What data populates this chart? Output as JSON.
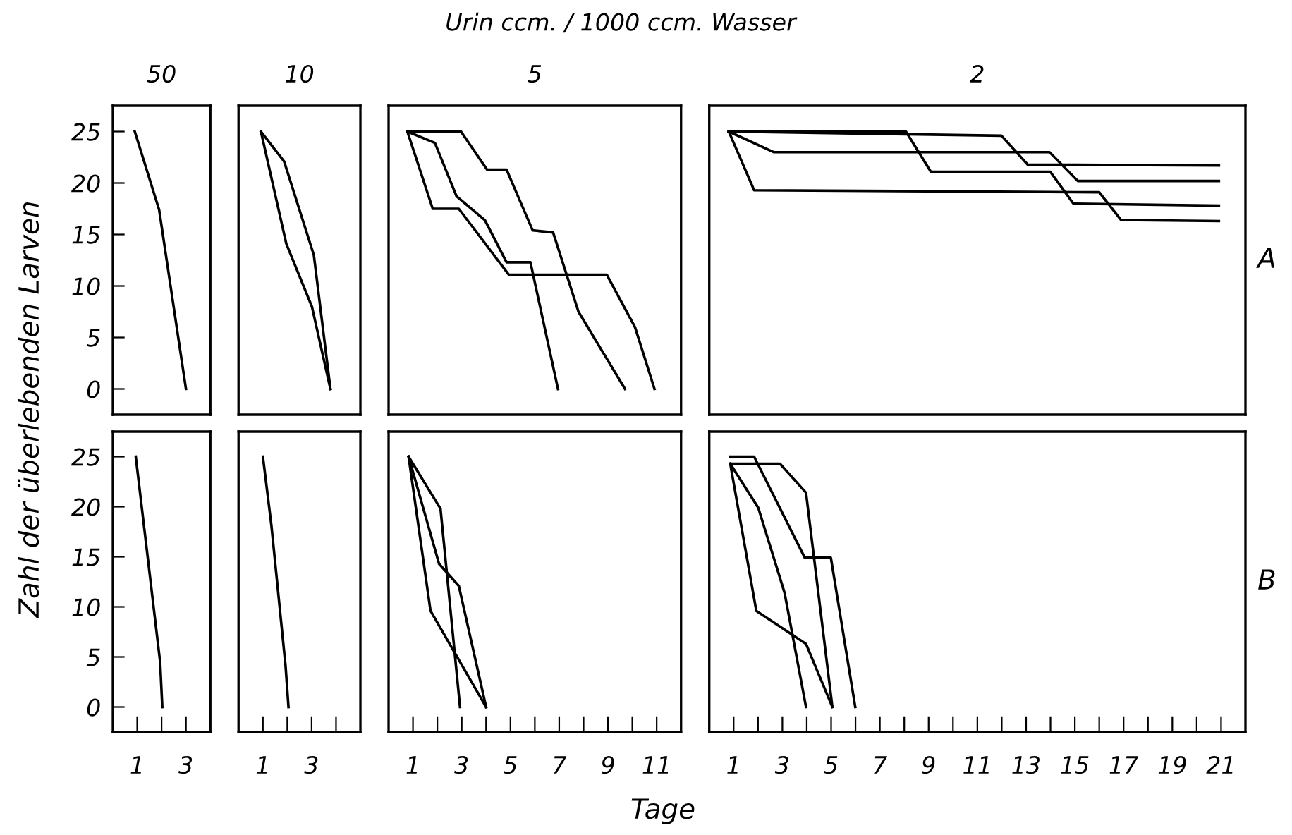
{
  "chart_data": [
    {
      "type": "line",
      "subtitle": "50",
      "xlim": [
        0,
        4
      ],
      "ylim": [
        -2.5,
        27.5
      ],
      "yticks": [
        0,
        5,
        10,
        15,
        20,
        25
      ],
      "tick_labels": "y",
      "marker": "none",
      "line_style": "solid",
      "series": [
        {
          "color": "#000000",
          "x": [
            0.9,
            1.9,
            3.0
          ],
          "values": [
            25,
            17.4,
            0
          ]
        }
      ]
    },
    {
      "type": "line",
      "subtitle": "10",
      "xlim": [
        0,
        5
      ],
      "ylim": [
        -2.5,
        27.5
      ],
      "tick_labels": false,
      "marker": "none",
      "line_style": "solid",
      "series": [
        {
          "color": "#000000",
          "x": [
            0.92,
            1.87,
            3.09,
            3.77
          ],
          "values": [
            25,
            22.1,
            13.0,
            0
          ]
        },
        {
          "color": "#000000",
          "x": [
            0.92,
            1.96,
            3.01,
            3.77
          ],
          "values": [
            25,
            14.1,
            8.0,
            0
          ]
        }
      ]
    },
    {
      "type": "line",
      "title": "Urin ccm. / 1000 ccm. Wasser",
      "subtitle": "5",
      "xlim": [
        0,
        12
      ],
      "ylim": [
        -2.5,
        27.5
      ],
      "tick_labels": false,
      "marker": "none",
      "line_style": "solid",
      "series": [
        {
          "color": "#000000",
          "x": [
            0.77,
            2.97,
            4.04,
            4.84,
            5.91,
            6.75,
            7.79,
            9.7
          ],
          "values": [
            25,
            25,
            21.3,
            21.3,
            15.4,
            15.2,
            7.5,
            0
          ]
        },
        {
          "color": "#000000",
          "x": [
            0.77,
            1.9,
            2.79,
            3.95,
            4.84,
            5.82,
            6.95
          ],
          "values": [
            25,
            23.9,
            18.7,
            16.4,
            12.3,
            12.3,
            0
          ]
        },
        {
          "color": "#000000",
          "x": [
            0.77,
            1.81,
            2.88,
            4.93,
            8.95,
            10.11,
            10.91
          ],
          "values": [
            25,
            17.5,
            17.5,
            11.1,
            11.1,
            6.0,
            0
          ]
        }
      ]
    },
    {
      "type": "line",
      "subtitle": "2",
      "xlim": [
        0,
        22
      ],
      "ylim": [
        -2.5,
        27.5
      ],
      "tick_labels": false,
      "marker": "none",
      "line_style": "solid",
      "annotations": [
        "A"
      ],
      "series": [
        {
          "color": "#000000",
          "x": [
            0.8,
            8.07,
            9.09,
            13.99,
            14.94,
            20.91
          ],
          "values": [
            25,
            25,
            21.1,
            21.1,
            18.0,
            17.8
          ]
        },
        {
          "color": "#000000",
          "x": [
            0.8,
            11.99,
            13.06,
            20.91
          ],
          "values": [
            25,
            24.6,
            21.8,
            21.7
          ]
        },
        {
          "color": "#000000",
          "x": [
            0.8,
            2.64,
            13.96,
            15.12,
            20.91
          ],
          "values": [
            25,
            23.0,
            23.0,
            20.2,
            20.2
          ]
        },
        {
          "color": "#000000",
          "x": [
            0.8,
            1.84,
            16.0,
            16.9,
            20.91
          ],
          "values": [
            25,
            19.3,
            19.1,
            16.4,
            16.3
          ]
        }
      ]
    },
    {
      "type": "line",
      "ylabel": "Zahl der überlebenden Larven",
      "xlim": [
        0,
        4
      ],
      "xticks": [
        1,
        {
          "value": 2,
          "label": null
        },
        3
      ],
      "ylim": [
        -2.5,
        27.5
      ],
      "yticks": [
        0,
        5,
        10,
        15,
        20,
        25
      ],
      "marker": "none",
      "line_style": "solid",
      "series": [
        {
          "color": "#000000",
          "x": [
            0.94,
            1.94,
            2.03
          ],
          "values": [
            25,
            4.5,
            0
          ]
        }
      ]
    },
    {
      "type": "line",
      "xlim": [
        0,
        5
      ],
      "xticks": [
        1,
        {
          "value": 2,
          "label": null
        },
        3,
        {
          "value": 4,
          "label": null
        }
      ],
      "ylim": [
        -2.5,
        27.5
      ],
      "tick_labels": "x",
      "marker": "none",
      "line_style": "solid",
      "series": [
        {
          "color": "#000000",
          "x": [
            1.0,
            1.35,
            1.93,
            2.05
          ],
          "values": [
            25,
            18.1,
            4.1,
            0
          ]
        }
      ]
    },
    {
      "type": "line",
      "xlabel": "Tage",
      "xlim": [
        0,
        12
      ],
      "xticks": [
        1,
        {
          "value": 2,
          "label": null
        },
        3,
        {
          "value": 4,
          "label": null
        },
        5,
        {
          "value": 6,
          "label": null
        },
        7,
        {
          "value": 8,
          "label": null
        },
        9,
        {
          "value": 10,
          "label": null
        },
        11
      ],
      "ylim": [
        -2.5,
        27.5
      ],
      "tick_labels": "x",
      "marker": "none",
      "line_style": "solid",
      "series": [
        {
          "color": "#000000",
          "x": [
            0.82,
            2.13,
            2.93
          ],
          "values": [
            25,
            19.8,
            0
          ]
        },
        {
          "color": "#000000",
          "x": [
            0.82,
            2.07,
            2.88,
            4.0
          ],
          "values": [
            25,
            14.3,
            12.1,
            0
          ]
        },
        {
          "color": "#000000",
          "x": [
            0.82,
            1.72,
            4.0
          ],
          "values": [
            25,
            9.6,
            0
          ]
        }
      ]
    },
    {
      "type": "line",
      "xlim": [
        0,
        22
      ],
      "xticks": [
        1,
        {
          "value": 2,
          "label": null
        },
        3,
        {
          "value": 4,
          "label": null
        },
        5,
        {
          "value": 6,
          "label": null
        },
        7,
        {
          "value": 8,
          "label": null
        },
        9,
        {
          "value": 10,
          "label": null
        },
        11,
        {
          "value": 12,
          "label": null
        },
        13,
        {
          "value": 14,
          "label": null
        },
        15,
        {
          "value": 16,
          "label": null
        },
        17,
        {
          "value": 18,
          "label": null
        },
        19,
        {
          "value": 20,
          "label": null
        },
        21
      ],
      "ylim": [
        -2.5,
        27.5
      ],
      "tick_labels": "x",
      "marker": "none",
      "line_style": "solid",
      "annotations": [
        "B"
      ],
      "series": [
        {
          "color": "#000000",
          "x": [
            0.86,
            1.84,
            3.92,
            4.99,
            5.99
          ],
          "values": [
            25,
            25,
            14.9,
            14.9,
            0
          ]
        },
        {
          "color": "#000000",
          "x": [
            0.86,
            2.9,
            3.97,
            5.05
          ],
          "values": [
            24.3,
            24.3,
            21.4,
            0
          ]
        },
        {
          "color": "#000000",
          "x": [
            0.86,
            2.01,
            3.09,
            3.97
          ],
          "values": [
            24.3,
            19.9,
            11.4,
            0
          ]
        },
        {
          "color": "#000000",
          "x": [
            0.86,
            1.93,
            3.97,
            5.05
          ],
          "values": [
            24.3,
            9.6,
            6.3,
            0
          ]
        }
      ]
    }
  ]
}
